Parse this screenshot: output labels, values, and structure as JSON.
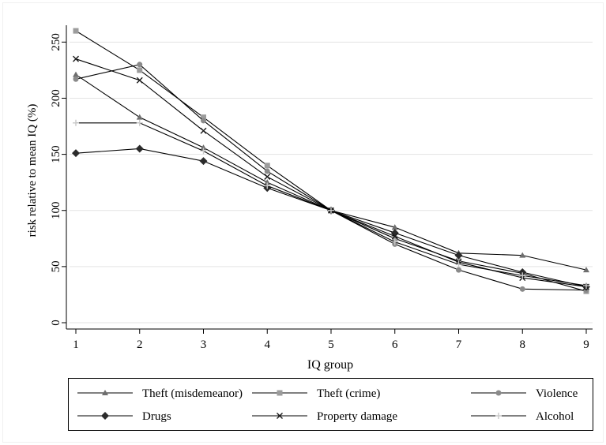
{
  "chart_data": {
    "type": "line",
    "xlabel": "IQ group",
    "ylabel": "risk relative to mean IQ (%)",
    "x": [
      1,
      2,
      3,
      4,
      5,
      6,
      7,
      8,
      9
    ],
    "x_ticks": [
      "1",
      "2",
      "3",
      "4",
      "5",
      "6",
      "7",
      "8",
      "9"
    ],
    "xlim": [
      1,
      9
    ],
    "ylim": [
      0,
      265
    ],
    "y_ticks": [
      0,
      50,
      100,
      150,
      200,
      250
    ],
    "grid": "horizontal",
    "legend_position": "bottom",
    "series": [
      {
        "name": "Theft (misdemeanor)",
        "marker": "triangle",
        "values": [
          221,
          183,
          156,
          125,
          100,
          85,
          62,
          60,
          47
        ]
      },
      {
        "name": "Theft (crime)",
        "marker": "square",
        "values": [
          260,
          225,
          183,
          140,
          100,
          75,
          55,
          44,
          28
        ]
      },
      {
        "name": "Violence",
        "marker": "circle",
        "values": [
          217,
          230,
          180,
          135,
          100,
          70,
          47,
          30,
          29
        ]
      },
      {
        "name": "Drugs",
        "marker": "diamond",
        "values": [
          151,
          155,
          144,
          120,
          100,
          80,
          60,
          45,
          32
        ]
      },
      {
        "name": "Property damage",
        "marker": "x",
        "values": [
          235,
          216,
          171,
          130,
          100,
          77,
          54,
          40,
          32
        ]
      },
      {
        "name": "Alcohol",
        "marker": "plus",
        "values": [
          178,
          178,
          153,
          122,
          100,
          72,
          52,
          42,
          33
        ]
      }
    ]
  }
}
